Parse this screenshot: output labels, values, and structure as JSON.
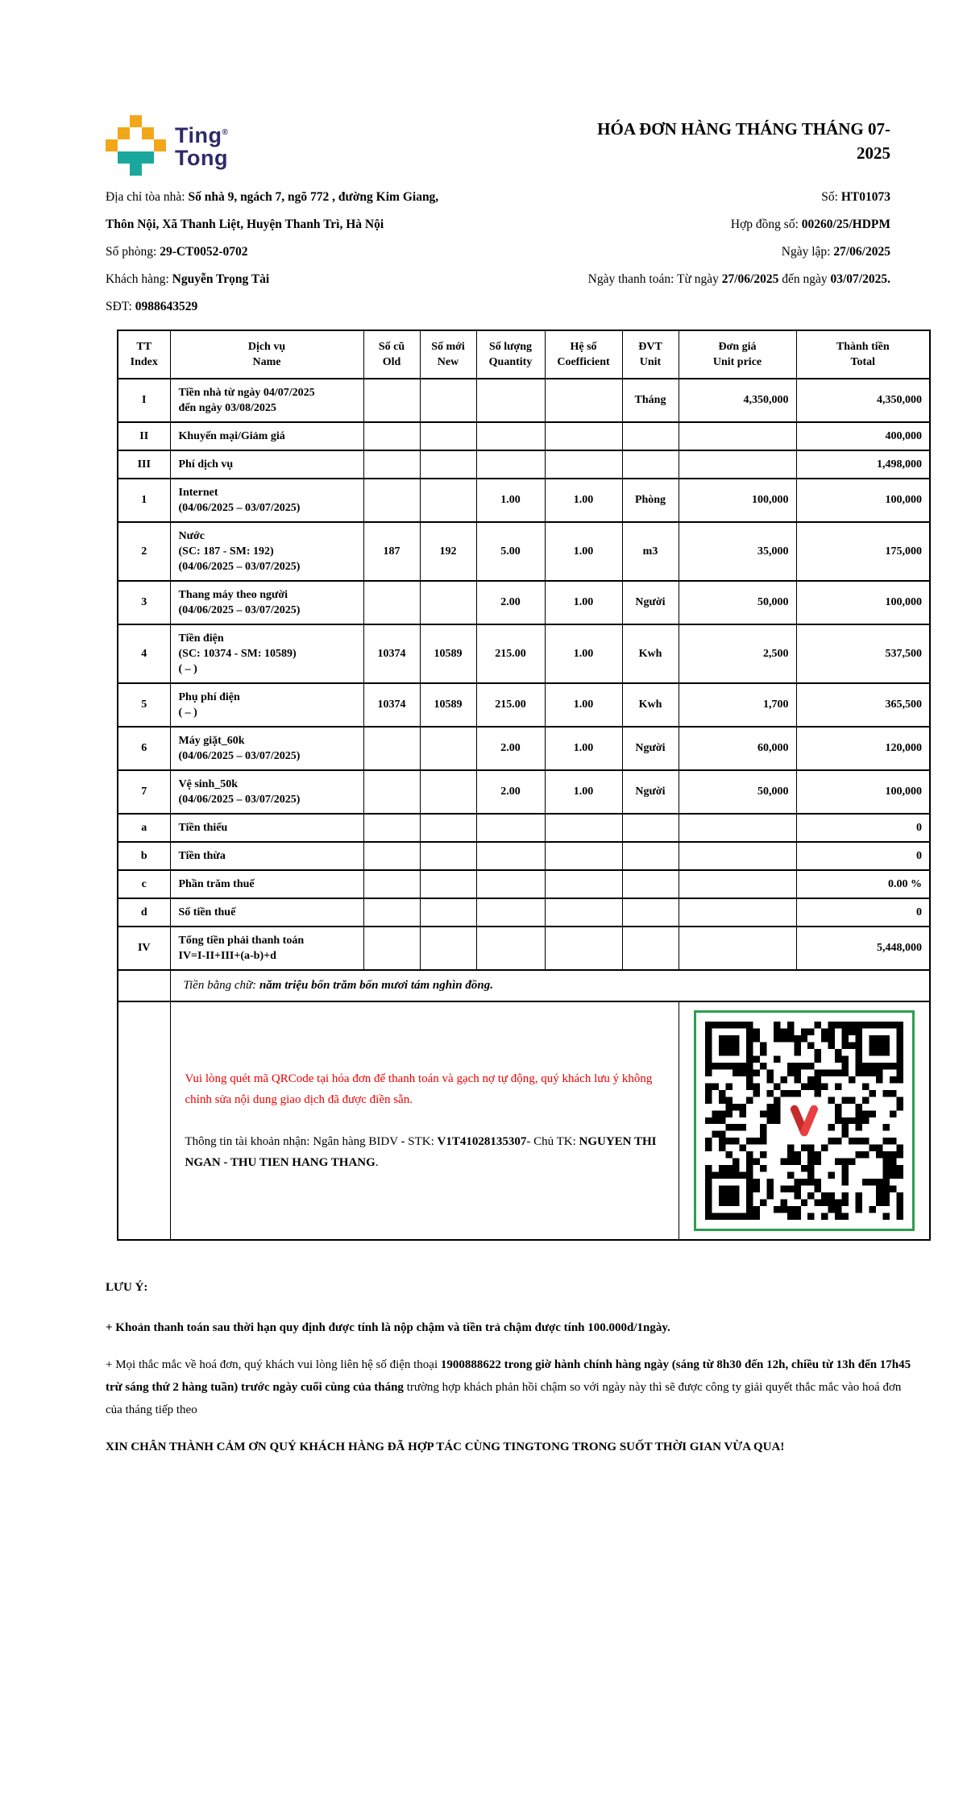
{
  "colors": {
    "brand_yellow": "#f2a71b",
    "brand_teal": "#1ba89c",
    "brand_navy": "#2d2a6a",
    "alert_red": "#ee0000",
    "qr_border_green": "#2e9e4f",
    "qr_logo_red": "#d93434"
  },
  "logo": {
    "line1": "Ting",
    "line2": "Tong",
    "reg_mark": "®"
  },
  "title": "HÓA ĐƠN HÀNG THÁNG THÁNG 07-2025",
  "info": {
    "address_label": "Địa chỉ tòa nhà: ",
    "address_value": "Số nhà 9, ngách 7, ngõ 772 , đường Kim Giang,",
    "address_line2": "Thôn Nội, Xã Thanh Liệt, Huyện Thanh Trì, Hà Nội",
    "room_label": "Số phòng: ",
    "room_value": "29-CT0052-0702",
    "customer_label": "Khách hàng: ",
    "customer_value": "Nguyễn Trọng Tài",
    "phone_label": "SĐT: ",
    "phone_value": "0988643529",
    "invoice_no_label": "Số: ",
    "invoice_no_value": "HT01073",
    "contract_label": "Hợp đồng số: ",
    "contract_value": "00260/25/HDPM",
    "issue_date_label": "Ngày lập: ",
    "issue_date_value": "27/06/2025",
    "payment_label": "Ngày thanh toán: Từ ngày ",
    "payment_from": "27/06/2025",
    "payment_mid": " đến ngày ",
    "payment_to": "03/07/2025."
  },
  "table": {
    "header": [
      {
        "vi": "TT",
        "en": "Index"
      },
      {
        "vi": "Dịch vụ",
        "en": "Name"
      },
      {
        "vi": "Số cũ",
        "en": "Old"
      },
      {
        "vi": "Số mới",
        "en": "New"
      },
      {
        "vi": "Số lượng",
        "en": "Quantity"
      },
      {
        "vi": "Hệ số",
        "en": "Coefficient"
      },
      {
        "vi": "ĐVT",
        "en": "Unit"
      },
      {
        "vi": "Đơn giá",
        "en": "Unit price"
      },
      {
        "vi": "Thành tiền",
        "en": "Total"
      }
    ],
    "rows": [
      {
        "idx": "I",
        "name": [
          "Tiền nhà từ ngày 04/07/2025",
          "đến ngày 03/08/2025"
        ],
        "old": "",
        "new": "",
        "qty": "",
        "coef": "",
        "unit": "Tháng",
        "price": "4,350,000",
        "total": "4,350,000"
      },
      {
        "idx": "II",
        "name": [
          "Khuyến mại/Giảm giá"
        ],
        "old": "",
        "new": "",
        "qty": "",
        "coef": "",
        "unit": "",
        "price": "",
        "total": "400,000"
      },
      {
        "idx": "III",
        "name": [
          "Phí dịch vụ"
        ],
        "old": "",
        "new": "",
        "qty": "",
        "coef": "",
        "unit": "",
        "price": "",
        "total": "1,498,000"
      },
      {
        "idx": "1",
        "name": [
          "Internet",
          "(04/06/2025 – 03/07/2025)"
        ],
        "old": "",
        "new": "",
        "qty": "1.00",
        "coef": "1.00",
        "unit": "Phòng",
        "price": "100,000",
        "total": "100,000"
      },
      {
        "idx": "2",
        "name": [
          "Nước",
          "(SC: 187 - SM: 192)",
          "(04/06/2025 – 03/07/2025)"
        ],
        "old": "187",
        "new": "192",
        "qty": "5.00",
        "coef": "1.00",
        "unit": "m3",
        "price": "35,000",
        "total": "175,000"
      },
      {
        "idx": "3",
        "name": [
          "Thang máy theo người",
          "(04/06/2025 – 03/07/2025)"
        ],
        "old": "",
        "new": "",
        "qty": "2.00",
        "coef": "1.00",
        "unit": "Người",
        "price": "50,000",
        "total": "100,000"
      },
      {
        "idx": "4",
        "name": [
          "Tiền điện",
          "(SC: 10374 - SM: 10589)",
          "( – )"
        ],
        "old": "10374",
        "new": "10589",
        "qty": "215.00",
        "coef": "1.00",
        "unit": "Kwh",
        "price": "2,500",
        "total": "537,500"
      },
      {
        "idx": "5",
        "name": [
          "Phụ phí điện",
          "( – )"
        ],
        "old": "10374",
        "new": "10589",
        "qty": "215.00",
        "coef": "1.00",
        "unit": "Kwh",
        "price": "1,700",
        "total": "365,500"
      },
      {
        "idx": "6",
        "name": [
          "Máy giặt_60k",
          "(04/06/2025 – 03/07/2025)"
        ],
        "old": "",
        "new": "",
        "qty": "2.00",
        "coef": "1.00",
        "unit": "Người",
        "price": "60,000",
        "total": "120,000"
      },
      {
        "idx": "7",
        "name": [
          "Vệ sinh_50k",
          "(04/06/2025 – 03/07/2025)"
        ],
        "old": "",
        "new": "",
        "qty": "2.00",
        "coef": "1.00",
        "unit": "Người",
        "price": "50,000",
        "total": "100,000"
      },
      {
        "idx": "a",
        "name": [
          "Tiền thiếu"
        ],
        "old": "",
        "new": "",
        "qty": "",
        "coef": "",
        "unit": "",
        "price": "",
        "total": "0"
      },
      {
        "idx": "b",
        "name": [
          "Tiền thừa"
        ],
        "old": "",
        "new": "",
        "qty": "",
        "coef": "",
        "unit": "",
        "price": "",
        "total": "0"
      },
      {
        "idx": "c",
        "name": [
          "Phần trăm thuế"
        ],
        "old": "",
        "new": "",
        "qty": "",
        "coef": "",
        "unit": "",
        "price": "",
        "total": "0.00 %"
      },
      {
        "idx": "d",
        "name": [
          "Số tiền thuế"
        ],
        "old": "",
        "new": "",
        "qty": "",
        "coef": "",
        "unit": "",
        "price": "",
        "total": "0"
      },
      {
        "idx": "IV",
        "name": [
          "Tổng tiền phải thanh toán",
          "IV=I-II+III+(a-b)+d"
        ],
        "old": "",
        "new": "",
        "qty": "",
        "coef": "",
        "unit": "",
        "price": "",
        "total": "5,448,000"
      }
    ],
    "amount_in_words": {
      "label": "Tiền bằng chữ: ",
      "value": "năm triệu bốn trăm bốn mươi tám nghìn đồng."
    },
    "qr_section": {
      "note": "Vui lòng quét mã QRCode tại hóa đơn để thanh toán và gạch nợ tự động, quý khách lưu ý không chỉnh sửa nội dung giao dịch đã được điền sẵn.",
      "account_pre": "Thông tin tài khoản nhận: Ngân hàng BIDV - STK: ",
      "account_number": "V1T41028135307",
      "account_mid": "- Chủ TK: ",
      "account_holder": "NGUYEN THI NGAN - THU TIEN HANG THANG",
      "account_end": "."
    }
  },
  "notes": {
    "heading": "LƯU Ý:",
    "p1": "+ Khoản thanh toán sau thời hạn quy định được tính là nộp chậm và tiền trả chậm được tính 100.000d/1ngày.",
    "p2_pre": "+ Mọi thắc mắc về hoá đơn, quý khách vui lòng liên hệ số điện thoại ",
    "p2_bold": "1900888622 trong giờ hành chính hàng ngày (sáng từ 8h30 đến 12h, chiều từ 13h đến 17h45 trừ sáng thứ 2 hàng tuần) trước ngày cuối cùng của tháng",
    "p2_post": " trường hợp khách phản hồi chậm so với ngày này thì sẽ được công ty giải quyết thắc mắc vào hoá đơn của tháng tiếp theo",
    "p3": "XIN CHÂN THÀNH CẢM ƠN QUÝ KHÁCH HÀNG ĐÃ HỢP TÁC CÙNG TINGTONG TRONG SUỐT THỜI GIAN VỪA QUA!"
  }
}
